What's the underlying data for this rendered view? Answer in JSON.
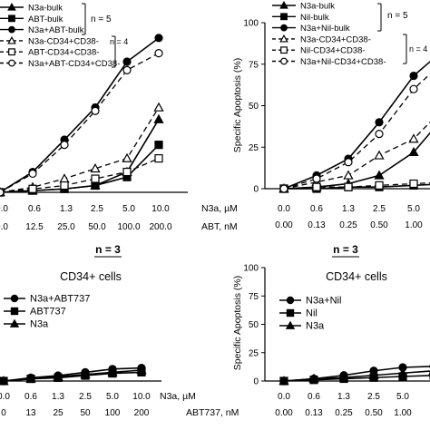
{
  "chart_data": [
    {
      "type": "line",
      "panel": "top-left",
      "ylabel": "",
      "x": [
        0.0,
        0.6,
        1.3,
        2.5,
        5.0,
        10.0
      ],
      "xtick_row1": [
        "0.0",
        "0.6",
        "1.3",
        "2.5",
        "5.0",
        "10.0"
      ],
      "xtick_row2": [
        "0.0",
        "12.5",
        "25.0",
        "50.0",
        "100.0",
        "200.0"
      ],
      "xlabel_row1": "N3a, µM",
      "xlabel_row2": "ABT, nM",
      "ylim": [
        0,
        100
      ],
      "legend_group1_n": "n = 5",
      "legend_group2_n": "n = 4",
      "series": [
        {
          "name": "N3a-bulk",
          "marker": "triangle",
          "dash": false,
          "values": [
            0,
            1,
            2,
            4,
            12,
            43
          ]
        },
        {
          "name": "ABT-bulk",
          "marker": "square",
          "dash": false,
          "values": [
            0,
            1,
            2,
            4,
            9,
            28
          ]
        },
        {
          "name": "N3a+ABT-bulk",
          "marker": "circle",
          "dash": false,
          "values": [
            0,
            12,
            31,
            50,
            77,
            91
          ]
        },
        {
          "name": "N3a-CD34+CD38-",
          "marker": "triangle-open",
          "dash": true,
          "values": [
            0,
            3,
            8,
            14,
            20,
            50
          ]
        },
        {
          "name": "ABT-CD34+CD38-",
          "marker": "square-open",
          "dash": true,
          "values": [
            0,
            2,
            4,
            8,
            12,
            20
          ]
        },
        {
          "name": "N3a+ABT-CD34+CD38-",
          "marker": "circle-open",
          "dash": true,
          "values": [
            0,
            11,
            28,
            48,
            72,
            82
          ]
        }
      ]
    },
    {
      "type": "line",
      "panel": "top-right",
      "ylabel": "Specific Apoptosis (%)",
      "yticks": [
        "0",
        "25",
        "50",
        "75",
        "100"
      ],
      "ylim": [
        0,
        100
      ],
      "x": [
        0.0,
        0.6,
        1.3,
        2.5,
        5.0,
        10.0
      ],
      "xtick_row1": [
        "0.0",
        "0.6",
        "1.3",
        "2.5",
        "5.0"
      ],
      "xtick_row2": [
        "0.00",
        "0.13",
        "0.25",
        "0.50",
        "1.00"
      ],
      "legend_group1_n": "n = 5",
      "legend_group2_n": "n = 4",
      "series": [
        {
          "name": "N3a-bulk",
          "marker": "triangle",
          "dash": false,
          "values": [
            0,
            1,
            3,
            8,
            22,
            45
          ]
        },
        {
          "name": "Nil-bulk",
          "marker": "square",
          "dash": false,
          "values": [
            0,
            0,
            1,
            1,
            2,
            3
          ]
        },
        {
          "name": "N3a+Nil-bulk",
          "marker": "circle",
          "dash": false,
          "values": [
            0,
            8,
            18,
            40,
            68,
            85
          ]
        },
        {
          "name": "N3a-CD34+CD38-",
          "marker": "triangle-open",
          "dash": true,
          "values": [
            0,
            4,
            8,
            20,
            30,
            50
          ]
        },
        {
          "name": "Nil-CD34+CD38-",
          "marker": "square-open",
          "dash": true,
          "values": [
            0,
            1,
            1,
            2,
            3,
            4
          ]
        },
        {
          "name": "N3a+Nil-CD34+CD38-",
          "marker": "circle-open",
          "dash": true,
          "values": [
            0,
            6,
            16,
            33,
            60,
            78
          ]
        }
      ]
    },
    {
      "type": "line",
      "panel": "bottom-left",
      "title_n": "n = 3",
      "subtitle": "CD34+ cells",
      "ylabel": "",
      "ylim": [
        0,
        100
      ],
      "x": [
        0.0,
        0.6,
        1.3,
        2.5,
        5.0,
        10.0
      ],
      "xtick_row1": [
        "0.0",
        "0.6",
        "1.3",
        "2.5",
        "5.0",
        "10.0"
      ],
      "xtick_row2": [
        "0",
        "13",
        "25",
        "50",
        "100",
        "200"
      ],
      "xlabel_row1": "N3a, µM",
      "xlabel_row2": "ABT737, nM",
      "series": [
        {
          "name": "N3a+ABT737",
          "marker": "circle",
          "values": [
            0,
            3,
            5,
            8,
            11,
            12
          ]
        },
        {
          "name": "ABT737",
          "marker": "square",
          "values": [
            0,
            2,
            3,
            5,
            7,
            8
          ]
        },
        {
          "name": "N3a",
          "marker": "triangle",
          "values": [
            0,
            2,
            4,
            6,
            8,
            10
          ]
        }
      ]
    },
    {
      "type": "line",
      "panel": "bottom-right",
      "title_n": "n = 3",
      "subtitle": "CD34+ cells",
      "ylabel": "Specific Apoptosis (%)",
      "yticks": [
        "0",
        "25",
        "50",
        "75",
        "100"
      ],
      "ylim": [
        0,
        100
      ],
      "x": [
        0.0,
        0.6,
        1.3,
        2.5,
        5.0,
        10.0
      ],
      "xtick_row1": [
        "0.0",
        "0.6",
        "1.3",
        "2.5",
        "5.0"
      ],
      "xtick_row2": [
        "0.00",
        "0.13",
        "0.25",
        "0.50",
        "1.00"
      ],
      "series": [
        {
          "name": "N3a+Nil",
          "marker": "circle",
          "values": [
            0,
            2,
            5,
            9,
            12,
            13
          ]
        },
        {
          "name": "Nil",
          "marker": "square",
          "values": [
            0,
            1,
            2,
            3,
            4,
            5
          ]
        },
        {
          "name": "N3a",
          "marker": "triangle",
          "values": [
            0,
            2,
            3,
            5,
            7,
            9
          ]
        }
      ]
    }
  ]
}
